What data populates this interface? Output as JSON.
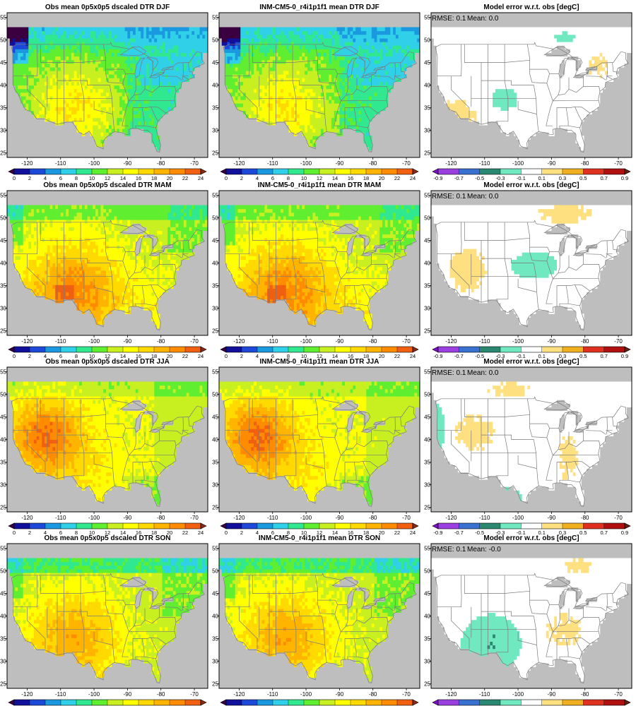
{
  "figure": {
    "rows": [
      {
        "season": "DJF",
        "panels": [
          {
            "kind": "obs",
            "title": "Obs mean 0p5x0p5 dscaled DTR DJF"
          },
          {
            "kind": "model",
            "title": "INM-CM5-0_r4i1p1f1 mean DTR DJF"
          },
          {
            "kind": "error",
            "title": "Model error w.r.t. obs [degC]",
            "rmse": "RMSE: 0.1",
            "mean": "Mean: 0.0"
          }
        ]
      },
      {
        "season": "MAM",
        "panels": [
          {
            "kind": "obs",
            "title": "Obs mean 0p5x0p5 dscaled DTR MAM"
          },
          {
            "kind": "model",
            "title": "INM-CM5-0_r4i1p1f1 mean DTR MAM"
          },
          {
            "kind": "error",
            "title": "Model error w.r.t. obs [degC]",
            "rmse": "RMSE: 0.1",
            "mean": "Mean: 0.0"
          }
        ]
      },
      {
        "season": "JJA",
        "panels": [
          {
            "kind": "obs",
            "title": "Obs mean 0p5x0p5 dscaled DTR JJA"
          },
          {
            "kind": "model",
            "title": "INM-CM5-0_r4i1p1f1 mean DTR JJA"
          },
          {
            "kind": "error",
            "title": "Model error w.r.t. obs [degC]",
            "rmse": "RMSE: 0.1",
            "mean": "Mean: 0.0"
          }
        ]
      },
      {
        "season": "SON",
        "panels": [
          {
            "kind": "obs",
            "title": "Obs mean 0p5x0p5 dscaled DTR SON"
          },
          {
            "kind": "model",
            "title": "INM-CM5-0_r4i1p1f1 mean DTR SON"
          },
          {
            "kind": "error",
            "title": "Model error w.r.t. obs [degC]",
            "rmse": "RMSE: 0.1",
            "mean": "Mean: -0.0"
          }
        ]
      }
    ],
    "lon_ticks": [
      "-120",
      "-110",
      "-100",
      "-90",
      "-80",
      "-70"
    ],
    "lat_ticks": [
      "55",
      "50",
      "45",
      "40",
      "35",
      "30",
      "25"
    ],
    "dtr_colorbar": {
      "labels": [
        "0",
        "2",
        "4",
        "6",
        "8",
        "10",
        "12",
        "14",
        "16",
        "18",
        "20",
        "22",
        "24"
      ],
      "colors": [
        "#3a0040",
        "#10109a",
        "#1d48d8",
        "#1a98e0",
        "#30d0e8",
        "#30e890",
        "#60ee30",
        "#c8f020",
        "#ffff00",
        "#ffd900",
        "#ffb400",
        "#ff8c00",
        "#f06010",
        "#8c2a10"
      ]
    },
    "error_colorbar": {
      "labels": [
        "-0.9",
        "-0.7",
        "-0.5",
        "-0.3",
        "-0.1",
        "0.1",
        "0.3",
        "0.5",
        "0.7",
        "0.9"
      ],
      "colors": [
        "#7a10c0",
        "#9a40e0",
        "#3a70d0",
        "#2a8870",
        "#70e8c0",
        "#ffffff",
        "#ffe080",
        "#f0b020",
        "#e03020",
        "#b01010",
        "#6a2010"
      ]
    },
    "colors": {
      "ocean_mask": "#bebebe",
      "frame": "#000000",
      "boundary": "#7a7a7a"
    }
  }
}
